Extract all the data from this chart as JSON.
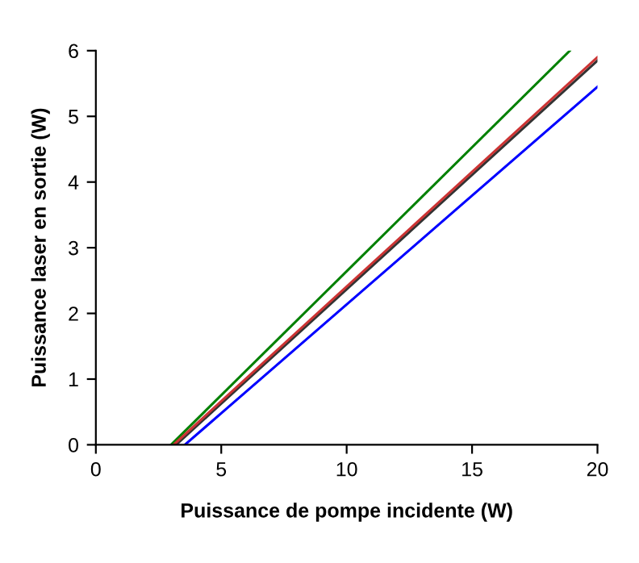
{
  "chart_data": {
    "type": "line",
    "xlabel": "Puissance de pompe incidente (W)",
    "ylabel": "Puissance laser en sortie (W)",
    "xlim": [
      0,
      20
    ],
    "ylim": [
      0,
      6
    ],
    "xticks": [
      0,
      5,
      10,
      15,
      20
    ],
    "yticks": [
      0,
      1,
      2,
      3,
      4,
      5,
      6
    ],
    "grid": false,
    "series": [
      {
        "color": "#008000",
        "x": [
          3.0,
          18.9
        ],
        "values": [
          0,
          6.0
        ]
      },
      {
        "color": "#333333",
        "x": [
          3.2,
          20
        ],
        "values": [
          0,
          5.85
        ]
      },
      {
        "color": "#cc3333",
        "x": [
          3.1,
          20
        ],
        "values": [
          0,
          5.9
        ]
      },
      {
        "color": "#0000ff",
        "x": [
          3.55,
          20
        ],
        "values": [
          0,
          5.45
        ]
      }
    ]
  }
}
